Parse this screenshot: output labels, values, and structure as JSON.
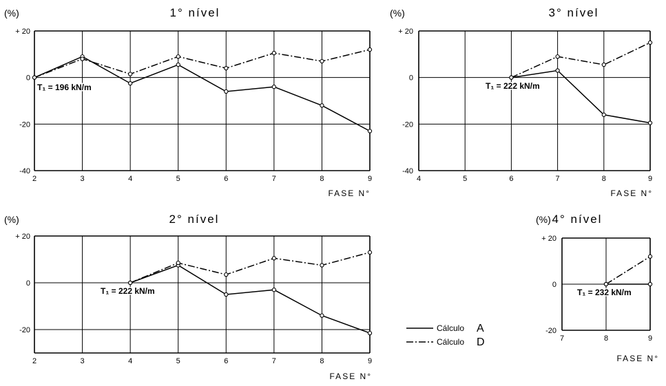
{
  "chart_data": [
    {
      "type": "line",
      "title": "1° nível",
      "ylabel": "(%)",
      "xlabel": "FASE   N°",
      "x": [
        2,
        3,
        4,
        5,
        6,
        7,
        8,
        9
      ],
      "xlim": [
        2,
        9
      ],
      "ylim": [
        -40,
        20
      ],
      "yticks": [
        20,
        0,
        -20,
        -40
      ],
      "ytick_labels": [
        "+ 20",
        "0",
        "-20",
        "-40"
      ],
      "grid": true,
      "annotation": "T₁ = 196 kN/m",
      "series": [
        {
          "name": "Cálculo A",
          "style": "solid",
          "x": [
            2,
            3,
            4,
            5,
            6,
            7,
            8,
            9
          ],
          "values": [
            0,
            9,
            -2.5,
            5.5,
            -6,
            -4,
            -12,
            -23
          ]
        },
        {
          "name": "Cálculo D",
          "style": "dashdot",
          "x": [
            2,
            3,
            4,
            5,
            6,
            7,
            8,
            9
          ],
          "values": [
            0,
            8,
            1.5,
            9,
            4,
            10.5,
            7,
            12
          ]
        }
      ]
    },
    {
      "type": "line",
      "title": "3° nível",
      "ylabel": "(%)",
      "xlabel": "FASE   N°",
      "x": [
        4,
        5,
        6,
        7,
        8,
        9
      ],
      "xlim": [
        4,
        9
      ],
      "ylim": [
        -40,
        20
      ],
      "yticks": [
        20,
        0,
        -20,
        -40
      ],
      "ytick_labels": [
        "+ 20",
        "0",
        "-20",
        "-40"
      ],
      "grid": true,
      "annotation": "T₁ = 222 kN/m",
      "series": [
        {
          "name": "Cálculo A",
          "style": "solid",
          "x": [
            6,
            7,
            8,
            9
          ],
          "values": [
            0,
            3,
            -16,
            -19.5
          ]
        },
        {
          "name": "Cálculo D",
          "style": "dashdot",
          "x": [
            6,
            7,
            8,
            9
          ],
          "values": [
            0,
            9,
            5.5,
            15
          ]
        }
      ]
    },
    {
      "type": "line",
      "title": "2° nível",
      "ylabel": "(%)",
      "xlabel": "FASE   N°",
      "x": [
        2,
        3,
        4,
        5,
        6,
        7,
        8,
        9
      ],
      "xlim": [
        2,
        9
      ],
      "ylim": [
        -30,
        20
      ],
      "yticks": [
        20,
        0,
        -20
      ],
      "ytick_labels": [
        "+ 20",
        "0",
        "-20"
      ],
      "grid": true,
      "annotation": "T₁ = 222 kN/m",
      "series": [
        {
          "name": "Cálculo A",
          "style": "solid",
          "x": [
            4,
            5,
            6,
            7,
            8,
            9
          ],
          "values": [
            0,
            7.5,
            -5,
            -3,
            -14,
            -21.5
          ]
        },
        {
          "name": "Cálculo D",
          "style": "dashdot",
          "x": [
            4,
            5,
            6,
            7,
            8,
            9
          ],
          "values": [
            0,
            8.5,
            3.5,
            10.5,
            7.5,
            13
          ]
        }
      ]
    },
    {
      "type": "line",
      "title": "4° nível",
      "ylabel": "(%)",
      "xlabel": "FASE   N°",
      "x": [
        7,
        8,
        9
      ],
      "xlim": [
        7,
        9
      ],
      "ylim": [
        -20,
        20
      ],
      "yticks": [
        20,
        0,
        -20
      ],
      "ytick_labels": [
        "+ 20",
        "0",
        "-20"
      ],
      "grid": true,
      "annotation": "T₁ = 232 kN/m",
      "series": [
        {
          "name": "Cálculo A",
          "style": "solid",
          "x": [
            8,
            9
          ],
          "values": [
            0,
            0
          ]
        },
        {
          "name": "Cálculo D",
          "style": "dashdot",
          "x": [
            8,
            9
          ],
          "values": [
            0,
            12
          ]
        }
      ]
    }
  ],
  "legend": {
    "items": [
      {
        "label": "Cálculo",
        "key": "A",
        "style": "solid"
      },
      {
        "label": "Cálculo",
        "key": "D",
        "style": "dashdot"
      }
    ]
  }
}
